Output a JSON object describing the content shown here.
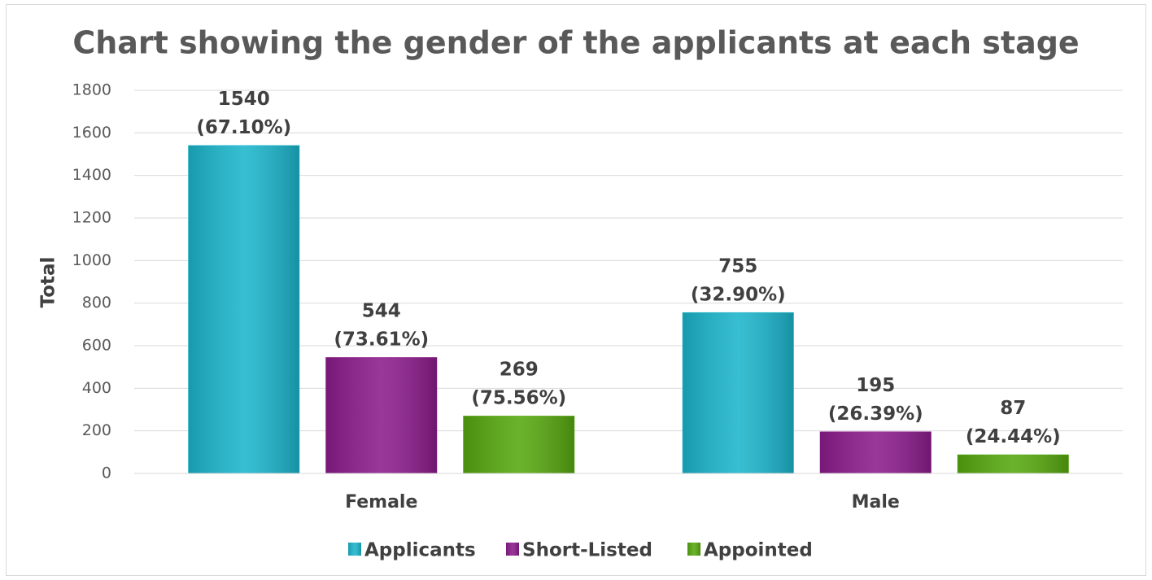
{
  "chart_data": {
    "type": "bar",
    "title": "Chart showing the gender of the applicants at each stage",
    "y_label": "Total",
    "categories": [
      "Female",
      "Male"
    ],
    "series": [
      {
        "name": "Applicants",
        "color": "#1cb5cc",
        "values": [
          1540,
          755
        ],
        "value_labels": [
          [
            "1540",
            "(67.10%)"
          ],
          [
            "755",
            "(32.90%)"
          ]
        ]
      },
      {
        "name": "Short-Listed",
        "color": "#8c1c8c",
        "values": [
          544,
          195
        ],
        "value_labels": [
          [
            "544",
            "(73.61%)"
          ],
          [
            "195",
            "(26.39%)"
          ]
        ]
      },
      {
        "name": "Appointed",
        "color": "#57a80f",
        "values": [
          269,
          87
        ],
        "value_labels": [
          [
            "269",
            "(75.56%)"
          ],
          [
            "87",
            "(24.44%)"
          ]
        ]
      }
    ],
    "ylim": [
      0,
      1800
    ],
    "yticks": [
      0,
      200,
      400,
      600,
      800,
      1000,
      1200,
      1400,
      1600,
      1800
    ],
    "grid": true,
    "legend": "bottom"
  }
}
